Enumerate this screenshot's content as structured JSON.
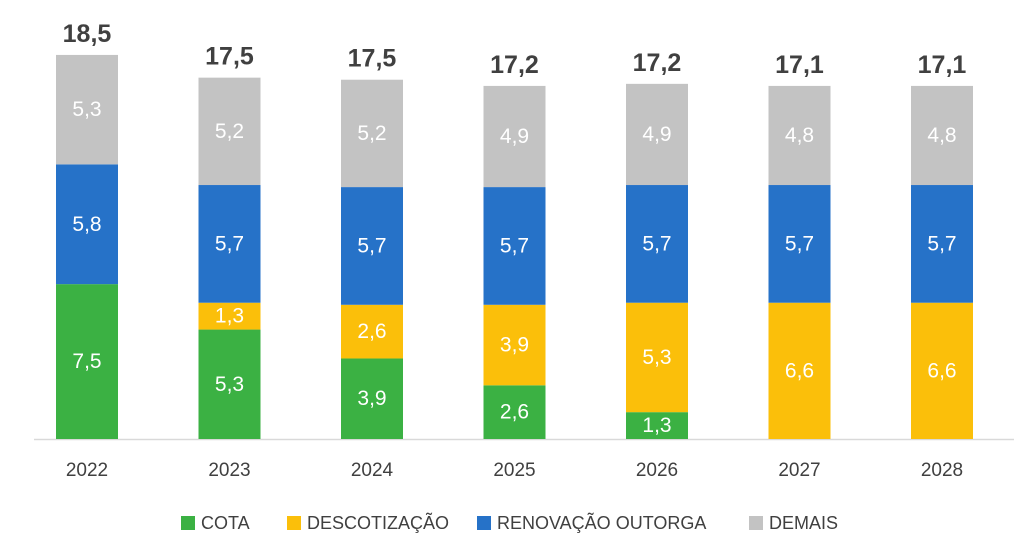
{
  "chart_data": {
    "type": "bar",
    "stacked": true,
    "categories": [
      "2022",
      "2023",
      "2024",
      "2025",
      "2026",
      "2027",
      "2028"
    ],
    "series": [
      {
        "name": "COTA",
        "color": "#3bb143",
        "values": [
          7.5,
          5.3,
          3.9,
          2.6,
          1.3,
          0,
          0
        ],
        "labels": [
          "7,5",
          "5,3",
          "3,9",
          "2,6",
          "1,3",
          "",
          ""
        ]
      },
      {
        "name": "DESCOTIZAÇÃO",
        "color": "#fbbf0a",
        "values": [
          0,
          1.3,
          2.6,
          3.9,
          5.3,
          6.6,
          6.6
        ],
        "labels": [
          "",
          "1,3",
          "2,6",
          "3,9",
          "5,3",
          "6,6",
          "6,6"
        ]
      },
      {
        "name": "RENOVAÇÃO OUTORGA",
        "color": "#2672c8",
        "values": [
          5.8,
          5.7,
          5.7,
          5.7,
          5.7,
          5.7,
          5.7
        ],
        "labels": [
          "5,8",
          "5,7",
          "5,7",
          "5,7",
          "5,7",
          "5,7",
          "5,7"
        ]
      },
      {
        "name": "DEMAIS",
        "color": "#c3c3c3",
        "values": [
          5.3,
          5.2,
          5.2,
          4.9,
          4.9,
          4.8,
          4.8
        ],
        "labels": [
          "5,3",
          "5,2",
          "5,2",
          "4,9",
          "4,9",
          "4,8",
          "4,8"
        ]
      }
    ],
    "totals": [
      18.5,
      17.5,
      17.5,
      17.2,
      17.2,
      17.1,
      17.1
    ],
    "total_labels": [
      "18,5",
      "17,5",
      "17,5",
      "17,2",
      "17,2",
      "17,1",
      "17,1"
    ],
    "title": "",
    "xlabel": "",
    "ylabel": "",
    "ylim": [
      0,
      18.5
    ],
    "grid": false,
    "legend": "bottom"
  }
}
